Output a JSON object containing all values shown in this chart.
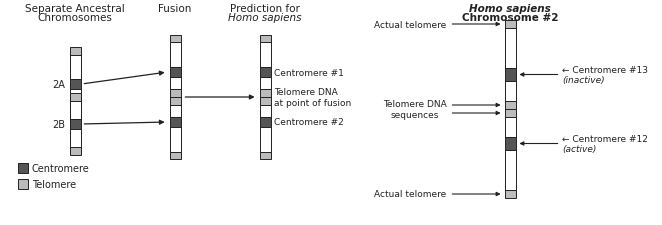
{
  "bg_color": "#ffffff",
  "centromere_color": "#555555",
  "telomere_color": "#bbbbbb",
  "white_color": "#ffffff",
  "outline_color": "#222222",
  "title_left_line1": "Separate Ancestral",
  "title_left_line2": "Chromosomes",
  "title_fusion": "Fusion",
  "title_pred_line1": "Prediction for",
  "title_pred_line2": "Homo sapiens",
  "title_right_line1": "Homo sapiens",
  "title_right_line2": "Chromosome #2",
  "label_2A": "2A",
  "label_2B": "2B",
  "legend_centromere": "Centromere",
  "legend_telomere": "Telomere",
  "pred_label1": "Centromere #1",
  "pred_label2": "Telomere DNA\nat point of fusion",
  "pred_label3": "Centromere #2",
  "right_label_top": "Actual telomere",
  "right_label_tel": "Telomere DNA\nsequences",
  "right_label_bot": "Actual telomere",
  "right_label_c13a": "← Centromere #13",
  "right_label_c13b": "(inactive)",
  "right_label_c12a": "← Centromere #12",
  "right_label_c12b": "(active)"
}
